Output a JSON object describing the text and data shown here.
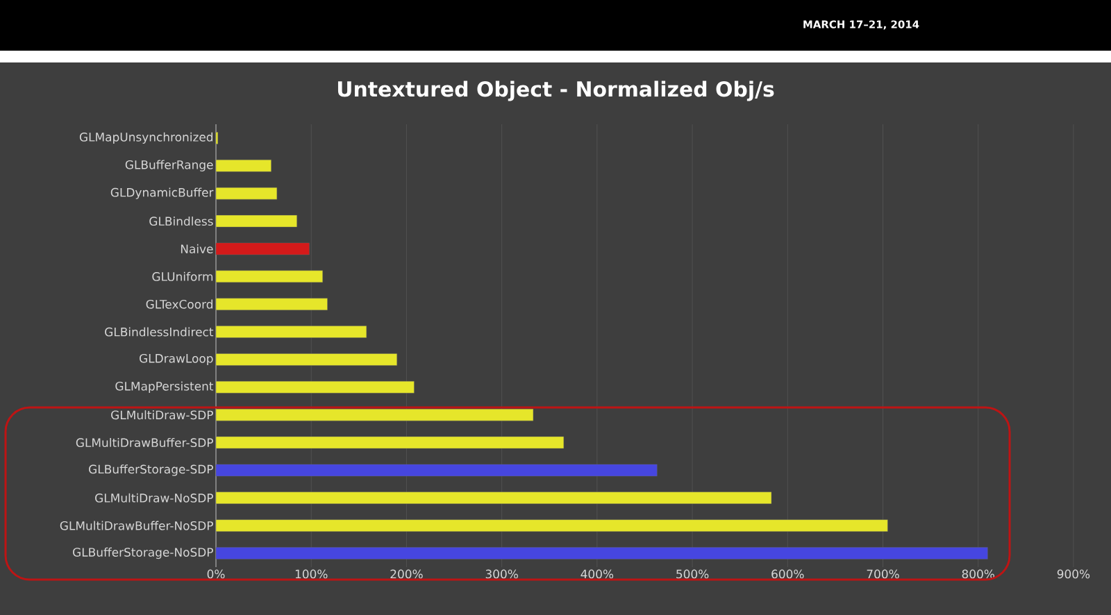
{
  "chart_data": {
    "type": "bar",
    "orientation": "horizontal",
    "title": "Untextured Object - Normalized Obj/s",
    "annotations": [
      "MARCH 17–21, 2014"
    ],
    "categories": [
      "GLMapUnsynchronized",
      "GLBufferRange",
      "GLDynamicBuffer",
      "GLBindless",
      "Naive",
      "GLUniform",
      "GLTexCoord",
      "GLBindlessIndirect",
      "GLDrawLoop",
      "GLMapPersistent",
      "GLMultiDraw-SDP",
      "GLMultiDrawBuffer-SDP",
      "GLBufferStorage-SDP",
      "GLMultiDraw-NoSDP",
      "GLMultiDrawBuffer-NoSDP",
      "GLBufferStorage-NoSDP"
    ],
    "values": [
      2,
      58,
      64,
      85,
      98,
      112,
      117,
      158,
      190,
      208,
      333,
      365,
      463,
      583,
      705,
      810
    ],
    "colors": [
      "#e6e62a",
      "#e6e62a",
      "#e6e62a",
      "#e6e62a",
      "#d41a1a",
      "#e6e62a",
      "#e6e62a",
      "#e6e62a",
      "#e6e62a",
      "#e6e62a",
      "#e6e62a",
      "#e6e62a",
      "#4646e0",
      "#e6e62a",
      "#e6e62a",
      "#4646e0"
    ],
    "xlim": [
      0,
      900
    ],
    "xticks": [
      {
        "value": 0,
        "label": "0%"
      },
      {
        "value": 100,
        "label": "100%"
      },
      {
        "value": 200,
        "label": "200%"
      },
      {
        "value": 300,
        "label": "300%"
      },
      {
        "value": 400,
        "label": "400%"
      },
      {
        "value": 500,
        "label": "500%"
      },
      {
        "value": 600,
        "label": "600%"
      },
      {
        "value": 700,
        "label": "700%"
      },
      {
        "value": 800,
        "label": "800%"
      },
      {
        "value": 900,
        "label": "900%"
      }
    ],
    "grid": "x"
  }
}
